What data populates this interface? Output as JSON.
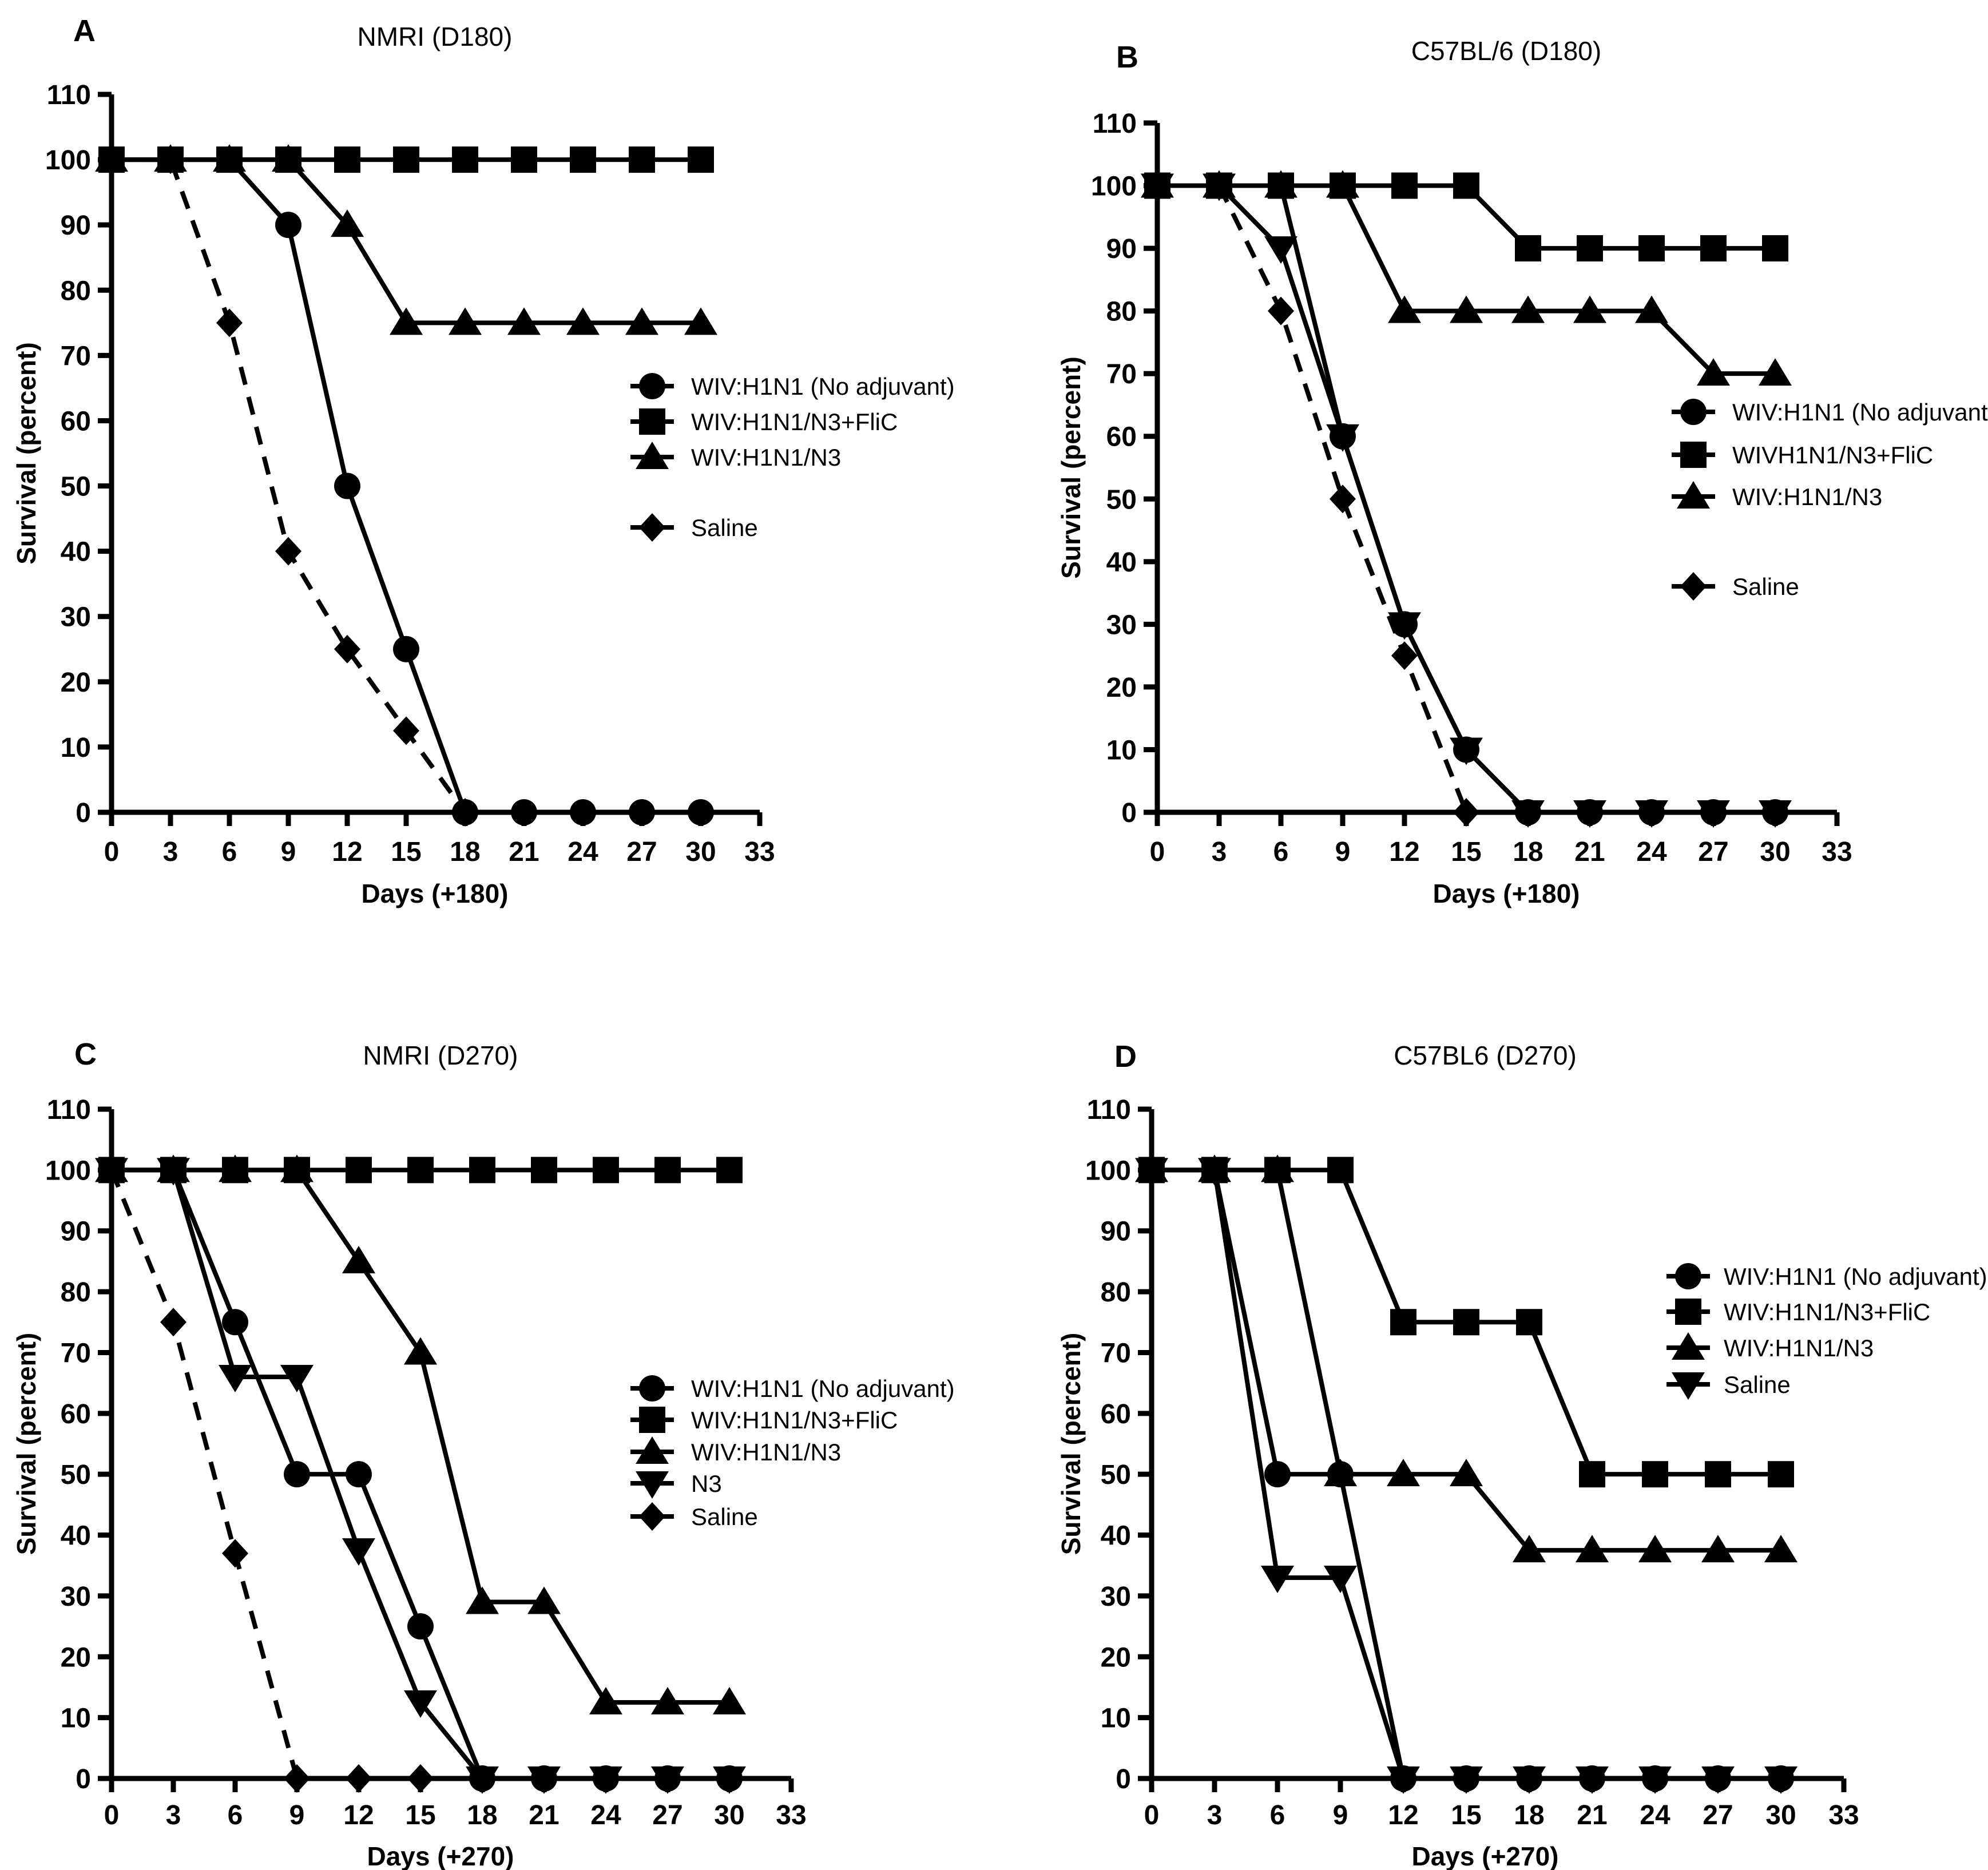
{
  "figure": {
    "background": "#ffffff",
    "ink": "#000000"
  },
  "chart_data": [
    {
      "id": "A",
      "panel_label": "A",
      "type": "line",
      "title": "NMRI (D180)",
      "xlabel": "Days (+180)",
      "ylabel": "Survival (percent)",
      "xlim": [
        0,
        33
      ],
      "ylim": [
        0,
        110
      ],
      "xticks": [
        0,
        3,
        6,
        9,
        12,
        15,
        18,
        21,
        24,
        27,
        30,
        33
      ],
      "yticks": [
        0,
        10,
        20,
        30,
        40,
        50,
        60,
        70,
        80,
        90,
        100,
        110
      ],
      "grid": false,
      "legend_position": "inside-right-middle",
      "series": [
        {
          "name": "WIV:H1N1 (No adjuvant)",
          "marker": "circle",
          "dashed": false,
          "in_legend": true,
          "z": 4,
          "x": [
            0,
            3,
            6,
            9,
            12,
            15,
            18,
            21,
            24,
            27,
            30
          ],
          "y": [
            100,
            100,
            100,
            90,
            50,
            25,
            0,
            0,
            0,
            0,
            0
          ]
        },
        {
          "name": "WIV:H1N1/N3+FliC",
          "marker": "square",
          "dashed": false,
          "in_legend": true,
          "z": 5,
          "x": [
            0,
            3,
            6,
            9,
            12,
            15,
            18,
            21,
            24,
            27,
            30
          ],
          "y": [
            100,
            100,
            100,
            100,
            100,
            100,
            100,
            100,
            100,
            100,
            100
          ]
        },
        {
          "name": "WIV:H1N1/N3",
          "marker": "triangle-up",
          "dashed": false,
          "in_legend": true,
          "z": 3,
          "x": [
            0,
            3,
            6,
            9,
            12,
            15,
            18,
            21,
            24,
            27,
            30
          ],
          "y": [
            100,
            100,
            100,
            100,
            90,
            75,
            75,
            75,
            75,
            75,
            75
          ]
        },
        {
          "name": "Saline",
          "marker": "diamond",
          "dashed": true,
          "in_legend": true,
          "z": 1,
          "x": [
            0,
            3,
            6,
            9,
            12,
            15,
            18
          ],
          "y": [
            100,
            100,
            75,
            40,
            25,
            12.5,
            0
          ]
        }
      ]
    },
    {
      "id": "B",
      "panel_label": "B",
      "type": "line",
      "title": "C57BL/6 (D180)",
      "xlabel": "Days (+180)",
      "ylabel": "Survival (percent)",
      "xlim": [
        0,
        33
      ],
      "ylim": [
        0,
        110
      ],
      "xticks": [
        0,
        3,
        6,
        9,
        12,
        15,
        18,
        21,
        24,
        27,
        30,
        33
      ],
      "yticks": [
        0,
        10,
        20,
        30,
        40,
        50,
        60,
        70,
        80,
        90,
        100,
        110
      ],
      "grid": false,
      "legend_position": "inside-right-middle",
      "series": [
        {
          "name": "WIV:H1N1 (No adjuvant)",
          "marker": "circle",
          "dashed": false,
          "in_legend": true,
          "z": 4,
          "x": [
            0,
            3,
            6,
            9,
            12,
            15,
            18,
            21,
            24,
            27,
            30
          ],
          "y": [
            100,
            100,
            100,
            60,
            30,
            10,
            0,
            0,
            0,
            0,
            0
          ]
        },
        {
          "name": "WIVH1N1/N3+FliC",
          "marker": "square",
          "dashed": false,
          "in_legend": true,
          "z": 5,
          "x": [
            0,
            3,
            6,
            9,
            12,
            15,
            18,
            21,
            24,
            27,
            30
          ],
          "y": [
            100,
            100,
            100,
            100,
            100,
            100,
            90,
            90,
            90,
            90,
            90
          ]
        },
        {
          "name": "WIV:H1N1/N3",
          "marker": "triangle-up",
          "dashed": false,
          "in_legend": true,
          "z": 3,
          "x": [
            0,
            3,
            6,
            9,
            12,
            15,
            18,
            21,
            24,
            27,
            30
          ],
          "y": [
            100,
            100,
            100,
            100,
            80,
            80,
            80,
            80,
            80,
            70,
            70
          ]
        },
        {
          "name": "",
          "marker": "triangle-down",
          "dashed": false,
          "in_legend": false,
          "z": 2,
          "x": [
            0,
            3,
            6,
            9,
            12,
            15,
            18,
            21,
            24,
            27,
            30
          ],
          "y": [
            100,
            100,
            90,
            60,
            30,
            10,
            0,
            0,
            0,
            0,
            0
          ]
        },
        {
          "name": "Saline",
          "marker": "diamond",
          "dashed": true,
          "in_legend": true,
          "z": 1,
          "x": [
            0,
            3,
            6,
            9,
            12,
            15
          ],
          "y": [
            100,
            100,
            80,
            50,
            25,
            0
          ]
        }
      ]
    },
    {
      "id": "C",
      "panel_label": "C",
      "type": "line",
      "title": "NMRI (D270)",
      "xlabel": "Days (+270)",
      "ylabel": "Survival (percent)",
      "xlim": [
        0,
        33
      ],
      "ylim": [
        0,
        110
      ],
      "xticks": [
        0,
        3,
        6,
        9,
        12,
        15,
        18,
        21,
        24,
        27,
        30,
        33
      ],
      "yticks": [
        0,
        10,
        20,
        30,
        40,
        50,
        60,
        70,
        80,
        90,
        100,
        110
      ],
      "grid": false,
      "legend_position": "inside-right-middle",
      "series": [
        {
          "name": "WIV:H1N1 (No adjuvant)",
          "marker": "circle",
          "dashed": false,
          "in_legend": true,
          "z": 4,
          "x": [
            0,
            3,
            6,
            9,
            12,
            15,
            18,
            21,
            24,
            27,
            30
          ],
          "y": [
            100,
            100,
            75,
            50,
            50,
            25,
            0,
            0,
            0,
            0,
            0
          ]
        },
        {
          "name": "WIV:H1N1/N3+FliC",
          "marker": "square",
          "dashed": false,
          "in_legend": true,
          "z": 5,
          "x": [
            0,
            3,
            6,
            9,
            12,
            15,
            18,
            21,
            24,
            27,
            30
          ],
          "y": [
            100,
            100,
            100,
            100,
            100,
            100,
            100,
            100,
            100,
            100,
            100
          ]
        },
        {
          "name": "WIV:H1N1/N3",
          "marker": "triangle-up",
          "dashed": false,
          "in_legend": true,
          "z": 3,
          "x": [
            0,
            3,
            6,
            9,
            12,
            15,
            18,
            21,
            24,
            27,
            30
          ],
          "y": [
            100,
            100,
            100,
            100,
            85,
            70,
            29,
            29,
            12.5,
            12.5,
            12.5
          ]
        },
        {
          "name": "N3",
          "marker": "triangle-down",
          "dashed": false,
          "in_legend": true,
          "z": 2,
          "x": [
            0,
            3,
            6,
            9,
            12,
            15,
            18,
            21,
            24,
            27,
            30
          ],
          "y": [
            100,
            100,
            66,
            66,
            37.5,
            12.5,
            0,
            0,
            0,
            0,
            0
          ]
        },
        {
          "name": "Saline",
          "marker": "diamond",
          "dashed": true,
          "in_legend": true,
          "z": 1,
          "x": [
            0,
            3,
            6,
            9,
            12,
            15
          ],
          "y": [
            100,
            75,
            37,
            0,
            0,
            0
          ]
        }
      ]
    },
    {
      "id": "D",
      "panel_label": "D",
      "type": "line",
      "title": "C57BL6 (D270)",
      "xlabel": "Days (+270)",
      "ylabel": "Survival (percent)",
      "xlim": [
        0,
        33
      ],
      "ylim": [
        0,
        110
      ],
      "xticks": [
        0,
        3,
        6,
        9,
        12,
        15,
        18,
        21,
        24,
        27,
        30,
        33
      ],
      "yticks": [
        0,
        10,
        20,
        30,
        40,
        50,
        60,
        70,
        80,
        90,
        100,
        110
      ],
      "grid": false,
      "legend_position": "inside-right-upper",
      "series": [
        {
          "name": "WIV:H1N1 (No adjuvant)",
          "marker": "circle",
          "dashed": false,
          "in_legend": true,
          "z": 4,
          "x": [
            0,
            3,
            6,
            9,
            12,
            15,
            18,
            21,
            24,
            27,
            30
          ],
          "y": [
            100,
            100,
            50,
            50,
            0,
            0,
            0,
            0,
            0,
            0,
            0
          ]
        },
        {
          "name": "WIV:H1N1/N3+FliC",
          "marker": "square",
          "dashed": false,
          "in_legend": true,
          "z": 5,
          "x": [
            0,
            3,
            6,
            9,
            12,
            15,
            18,
            21,
            24,
            27,
            30
          ],
          "y": [
            100,
            100,
            100,
            100,
            75,
            75,
            75,
            50,
            50,
            50,
            50
          ]
        },
        {
          "name": "WIV:H1N1/N3",
          "marker": "triangle-up",
          "dashed": false,
          "in_legend": true,
          "z": 3,
          "x": [
            0,
            3,
            6,
            9,
            12,
            15,
            18,
            21,
            24,
            27,
            30
          ],
          "y": [
            100,
            100,
            100,
            50,
            50,
            50,
            37.5,
            37.5,
            37.5,
            37.5,
            37.5
          ]
        },
        {
          "name": "Saline",
          "marker": "triangle-down",
          "dashed": false,
          "in_legend": true,
          "z": 1,
          "x": [
            0,
            3,
            6,
            9,
            12,
            15,
            18,
            21,
            24,
            27,
            30
          ],
          "y": [
            100,
            100,
            33,
            33,
            0,
            0,
            0,
            0,
            0,
            0,
            0
          ]
        }
      ]
    }
  ]
}
